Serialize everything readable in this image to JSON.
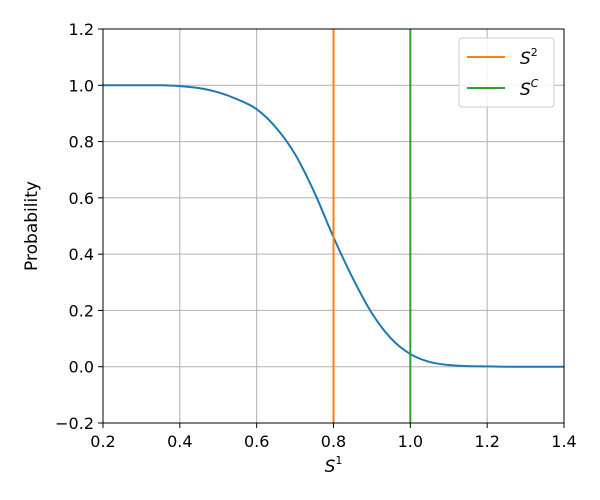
{
  "chart_data": {
    "type": "line",
    "xlabel_base": "S",
    "xlabel_sup": "1",
    "ylabel": "Probability",
    "xlim": [
      0.2,
      1.4
    ],
    "ylim": [
      -0.2,
      1.2
    ],
    "xticks": [
      "0.2",
      "0.4",
      "0.6",
      "0.8",
      "1.0",
      "1.2",
      "1.4"
    ],
    "yticks": [
      "−0.2",
      "0.0",
      "0.2",
      "0.4",
      "0.6",
      "0.8",
      "1.0",
      "1.2"
    ],
    "grid": true,
    "legend_placement": "top-right",
    "colors": {
      "curve": "#1f77b4",
      "s2": "#ff7f0e",
      "sc": "#2ca02c",
      "grid": "#b0b0b0"
    },
    "series": [
      {
        "style": "line",
        "x": [
          0.2,
          0.25,
          0.3,
          0.35,
          0.4,
          0.45,
          0.5,
          0.55,
          0.6,
          0.65,
          0.7,
          0.75,
          0.8,
          0.85,
          0.9,
          0.95,
          1.0,
          1.05,
          1.1,
          1.15,
          1.2,
          1.25,
          1.3,
          1.35,
          1.4
        ],
        "y": [
          1.0,
          1.0,
          1.0,
          1.0,
          0.997,
          0.99,
          0.975,
          0.95,
          0.915,
          0.85,
          0.755,
          0.62,
          0.46,
          0.315,
          0.19,
          0.1,
          0.045,
          0.017,
          0.006,
          0.002,
          0.001,
          0.0,
          0.0,
          0.0,
          0.0
        ]
      },
      {
        "name_base": "S",
        "name_sup": "2",
        "style": "vline",
        "x": 0.8
      },
      {
        "name_base": "S",
        "name_sup": "C",
        "style": "vline",
        "x": 1.0
      }
    ]
  }
}
